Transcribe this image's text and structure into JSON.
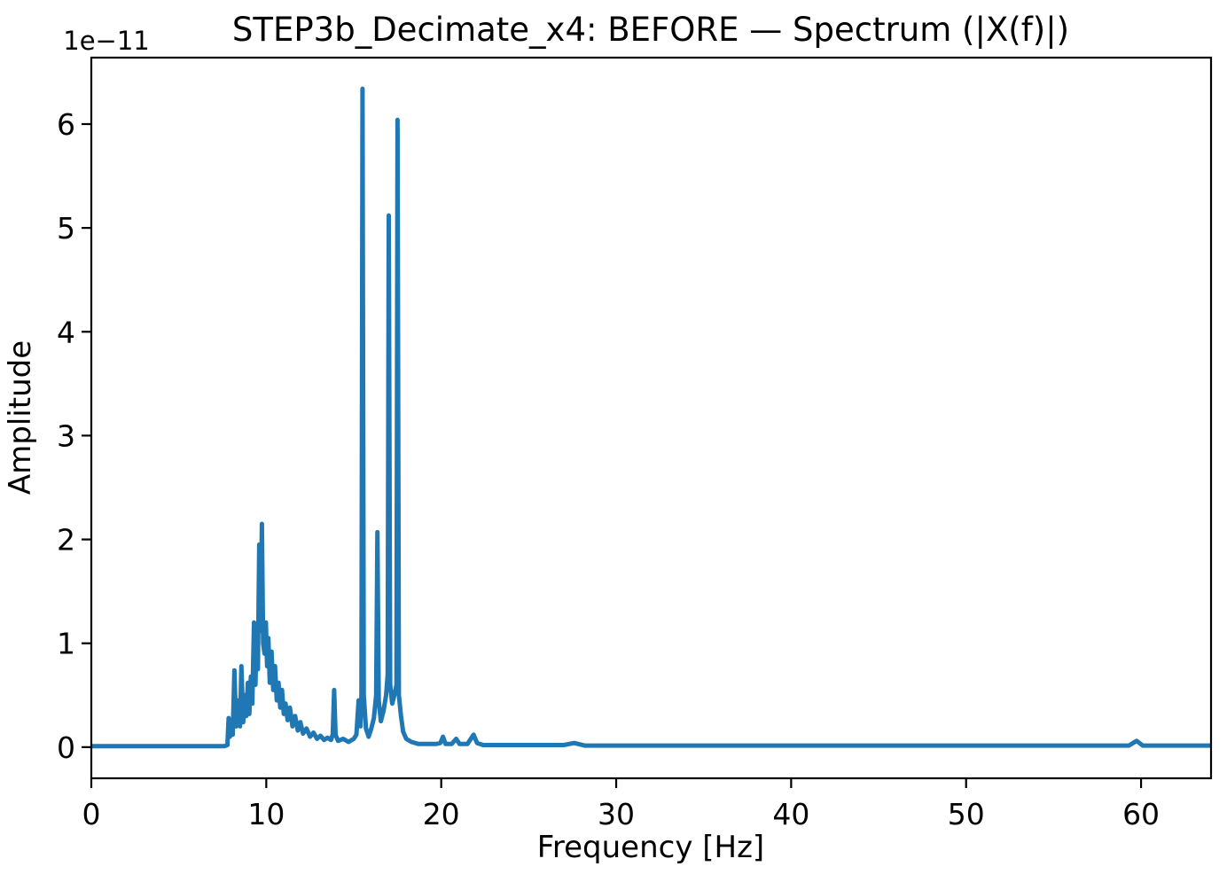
{
  "page": {
    "background": "#ffffff"
  },
  "chart_data": {
    "type": "line",
    "title": "STEP3b_Decimate_x4: BEFORE — Spectrum (|X(f)|)",
    "xlabel": "Frequency [Hz]",
    "ylabel": "Amplitude",
    "y_offset_text": "1e−11",
    "y_scale_factor": 1e-11,
    "xlim": [
      0,
      64
    ],
    "ylim": [
      -0.3,
      6.64
    ],
    "x_ticks": [
      0,
      10,
      20,
      30,
      40,
      50,
      60
    ],
    "y_ticks": [
      0,
      1,
      2,
      3,
      4,
      5,
      6
    ],
    "grid": false,
    "legend": "none",
    "line_color": "#1f77b4",
    "axis_color": "#000000",
    "notable_peaks": [
      {
        "freq_hz": 9.75,
        "amplitude_1e11": 2.15
      },
      {
        "freq_hz": 13.88,
        "amplitude_1e11": 0.55
      },
      {
        "freq_hz": 15.5,
        "amplitude_1e11": 6.34
      },
      {
        "freq_hz": 16.35,
        "amplitude_1e11": 2.07
      },
      {
        "freq_hz": 17.0,
        "amplitude_1e11": 5.12
      },
      {
        "freq_hz": 17.5,
        "amplitude_1e11": 6.04
      },
      {
        "freq_hz": 59.8,
        "amplitude_1e11": 0.06
      }
    ],
    "series": [
      {
        "name": "|X(f)|",
        "points": [
          [
            0,
            0.01
          ],
          [
            1,
            0.01
          ],
          [
            2,
            0.01
          ],
          [
            3,
            0.01
          ],
          [
            4,
            0.01
          ],
          [
            5,
            0.01
          ],
          [
            6,
            0.01
          ],
          [
            7,
            0.01
          ],
          [
            7.6,
            0.01
          ],
          [
            7.78,
            0.02
          ],
          [
            7.85,
            0.28
          ],
          [
            7.92,
            0.1
          ],
          [
            8.0,
            0.22
          ],
          [
            8.08,
            0.12
          ],
          [
            8.18,
            0.74
          ],
          [
            8.28,
            0.2
          ],
          [
            8.4,
            0.45
          ],
          [
            8.5,
            0.2
          ],
          [
            8.58,
            0.78
          ],
          [
            8.68,
            0.24
          ],
          [
            8.78,
            0.5
          ],
          [
            8.86,
            0.3
          ],
          [
            8.95,
            0.62
          ],
          [
            9.03,
            0.32
          ],
          [
            9.12,
            0.68
          ],
          [
            9.2,
            0.42
          ],
          [
            9.3,
            1.2
          ],
          [
            9.38,
            0.6
          ],
          [
            9.45,
            1.1
          ],
          [
            9.52,
            0.75
          ],
          [
            9.6,
            1.95
          ],
          [
            9.68,
            1.12
          ],
          [
            9.75,
            2.15
          ],
          [
            9.82,
            1.0
          ],
          [
            9.9,
            0.9
          ],
          [
            9.98,
            1.2
          ],
          [
            10.05,
            0.78
          ],
          [
            10.12,
            1.05
          ],
          [
            10.2,
            0.62
          ],
          [
            10.3,
            0.92
          ],
          [
            10.4,
            0.55
          ],
          [
            10.5,
            0.78
          ],
          [
            10.6,
            0.45
          ],
          [
            10.7,
            0.62
          ],
          [
            10.8,
            0.38
          ],
          [
            10.9,
            0.55
          ],
          [
            11.0,
            0.32
          ],
          [
            11.1,
            0.42
          ],
          [
            11.22,
            0.26
          ],
          [
            11.35,
            0.38
          ],
          [
            11.5,
            0.2
          ],
          [
            11.65,
            0.3
          ],
          [
            11.8,
            0.16
          ],
          [
            11.95,
            0.24
          ],
          [
            12.1,
            0.13
          ],
          [
            12.3,
            0.18
          ],
          [
            12.5,
            0.1
          ],
          [
            12.7,
            0.14
          ],
          [
            12.9,
            0.08
          ],
          [
            13.1,
            0.11
          ],
          [
            13.3,
            0.07
          ],
          [
            13.5,
            0.09
          ],
          [
            13.7,
            0.07
          ],
          [
            13.8,
            0.12
          ],
          [
            13.88,
            0.55
          ],
          [
            13.96,
            0.12
          ],
          [
            14.1,
            0.06
          ],
          [
            14.4,
            0.08
          ],
          [
            14.7,
            0.05
          ],
          [
            15.0,
            0.08
          ],
          [
            15.15,
            0.12
          ],
          [
            15.28,
            0.45
          ],
          [
            15.38,
            0.2
          ],
          [
            15.44,
            0.5
          ],
          [
            15.5,
            6.34
          ],
          [
            15.57,
            0.5
          ],
          [
            15.7,
            0.18
          ],
          [
            15.85,
            0.1
          ],
          [
            16.0,
            0.18
          ],
          [
            16.15,
            0.28
          ],
          [
            16.28,
            0.5
          ],
          [
            16.35,
            2.07
          ],
          [
            16.43,
            0.45
          ],
          [
            16.55,
            0.25
          ],
          [
            16.7,
            0.35
          ],
          [
            16.85,
            0.5
          ],
          [
            16.94,
            0.7
          ],
          [
            17.0,
            5.12
          ],
          [
            17.08,
            0.6
          ],
          [
            17.2,
            0.42
          ],
          [
            17.32,
            0.5
          ],
          [
            17.44,
            0.6
          ],
          [
            17.5,
            6.04
          ],
          [
            17.58,
            0.5
          ],
          [
            17.7,
            0.3
          ],
          [
            17.82,
            0.15
          ],
          [
            18.0,
            0.08
          ],
          [
            18.3,
            0.05
          ],
          [
            18.7,
            0.03
          ],
          [
            19.2,
            0.03
          ],
          [
            19.7,
            0.03
          ],
          [
            19.95,
            0.04
          ],
          [
            20.1,
            0.1
          ],
          [
            20.25,
            0.03
          ],
          [
            20.6,
            0.03
          ],
          [
            20.85,
            0.08
          ],
          [
            21.05,
            0.03
          ],
          [
            21.5,
            0.03
          ],
          [
            21.85,
            0.12
          ],
          [
            22.05,
            0.04
          ],
          [
            22.4,
            0.02
          ],
          [
            23,
            0.02
          ],
          [
            24,
            0.02
          ],
          [
            25,
            0.02
          ],
          [
            26,
            0.02
          ],
          [
            27,
            0.02
          ],
          [
            27.6,
            0.04
          ],
          [
            28.2,
            0.015
          ],
          [
            30,
            0.015
          ],
          [
            32,
            0.015
          ],
          [
            35,
            0.015
          ],
          [
            38,
            0.015
          ],
          [
            41,
            0.015
          ],
          [
            44,
            0.015
          ],
          [
            47,
            0.015
          ],
          [
            50,
            0.015
          ],
          [
            53,
            0.015
          ],
          [
            56,
            0.015
          ],
          [
            58.5,
            0.015
          ],
          [
            59.3,
            0.015
          ],
          [
            59.75,
            0.06
          ],
          [
            60.1,
            0.015
          ],
          [
            61.5,
            0.015
          ],
          [
            63,
            0.015
          ],
          [
            64,
            0.015
          ]
        ]
      }
    ]
  }
}
